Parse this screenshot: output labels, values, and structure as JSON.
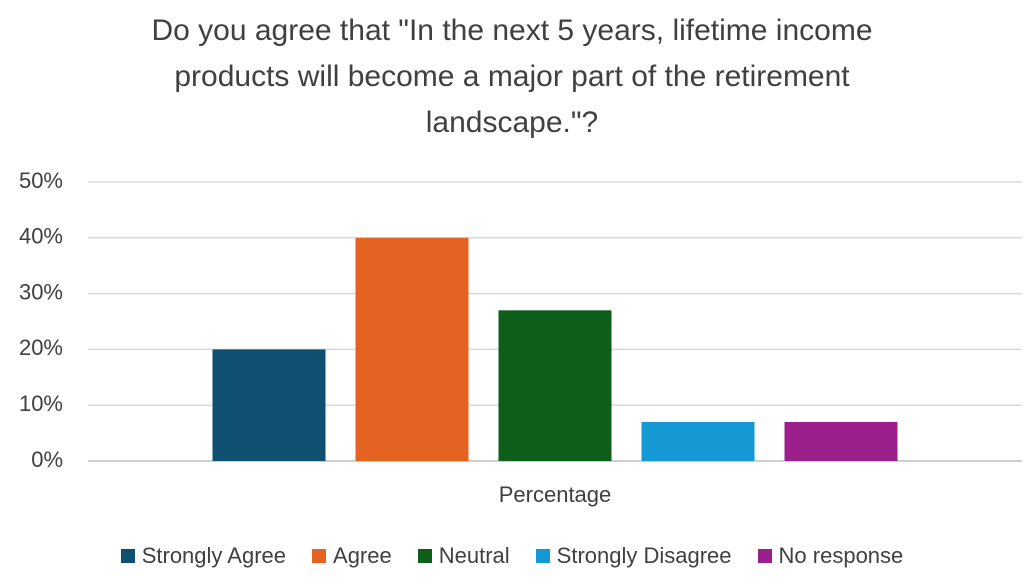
{
  "chart_data": {
    "type": "bar",
    "title": "Do you agree that \"In the next 5 years, lifetime income products will become a major part of the retirement landscape.\"?",
    "categories": [
      "Percentage"
    ],
    "series": [
      {
        "name": "Strongly Agree",
        "color": "#0f4f70",
        "values": [
          20
        ]
      },
      {
        "name": "Agree",
        "color": "#e46322",
        "values": [
          40
        ]
      },
      {
        "name": "Neutral",
        "color": "#0e5e1a",
        "values": [
          27
        ]
      },
      {
        "name": "Strongly Disagree",
        "color": "#1599d4",
        "values": [
          7
        ]
      },
      {
        "name": "No response",
        "color": "#9b1f8b",
        "values": [
          7
        ]
      }
    ],
    "ylim": [
      0,
      50
    ],
    "yticks": [
      {
        "value": 0,
        "label": "0%"
      },
      {
        "value": 10,
        "label": "10%"
      },
      {
        "value": 20,
        "label": "20%"
      },
      {
        "value": 30,
        "label": "30%"
      },
      {
        "value": 40,
        "label": "40%"
      },
      {
        "value": 50,
        "label": "50%"
      }
    ],
    "grid": true,
    "legend": "bottom"
  }
}
